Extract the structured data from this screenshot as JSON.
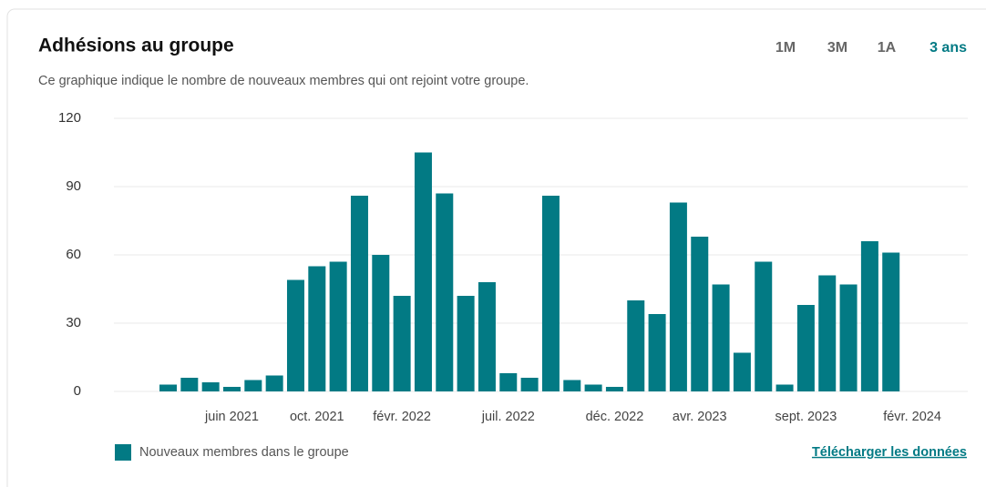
{
  "header": {
    "title": "Adhésions au groupe",
    "subtitle": "Ce graphique indique le nombre de nouveaux membres qui ont rejoint votre groupe."
  },
  "range_buttons": [
    {
      "label": "1M",
      "active": false
    },
    {
      "label": "3M",
      "active": false
    },
    {
      "label": "1A",
      "active": false
    },
    {
      "label": "3 ans",
      "active": true
    }
  ],
  "chart_data": {
    "type": "bar",
    "categories": [
      null,
      null,
      null,
      "juin 2021",
      null,
      null,
      null,
      "oct. 2021",
      null,
      null,
      null,
      "févr. 2022",
      null,
      null,
      null,
      null,
      "juil. 2022",
      null,
      null,
      null,
      null,
      "déc. 2022",
      null,
      null,
      null,
      "avr. 2023",
      null,
      null,
      null,
      null,
      "sept. 2023",
      null,
      null,
      null,
      null,
      "févr. 2024"
    ],
    "series": [
      {
        "name": "Nouveaux membres dans le groupe",
        "color": "#027a84",
        "values": [
          3,
          6,
          4,
          2,
          5,
          7,
          49,
          55,
          57,
          86,
          60,
          42,
          105,
          87,
          42,
          48,
          8,
          6,
          86,
          5,
          3,
          2,
          40,
          34,
          83,
          68,
          47,
          17,
          57,
          3,
          38,
          51,
          47,
          66,
          61,
          null
        ]
      }
    ],
    "ylim": [
      0,
      120
    ],
    "yticks": [
      0,
      30,
      60,
      90,
      120
    ],
    "grid": true
  },
  "download_link": "Télécharger les données"
}
